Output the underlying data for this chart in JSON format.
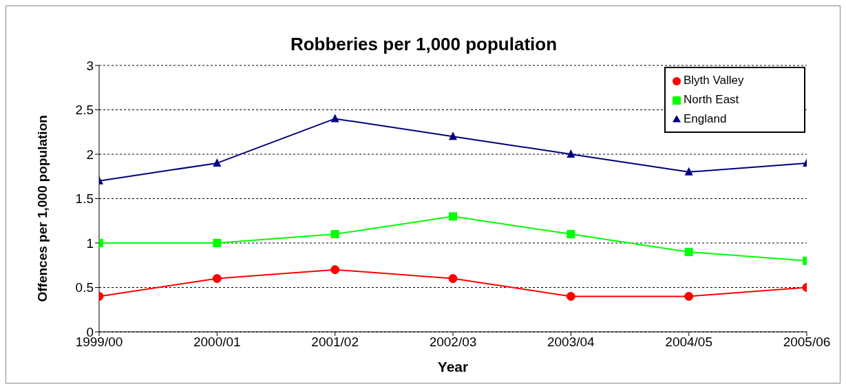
{
  "chart_data": {
    "type": "line",
    "title": "Robberies per 1,000 population",
    "xlabel": "Year",
    "ylabel": "Offences per 1,000 population",
    "categories": [
      "1999/00",
      "2000/01",
      "2001/02",
      "2002/03",
      "2003/04",
      "2004/05",
      "2005/06"
    ],
    "series": [
      {
        "name": "Blyth Valley",
        "color": "#ff0000",
        "marker": "circle",
        "values": [
          0.4,
          0.6,
          0.7,
          0.6,
          0.4,
          0.4,
          0.5
        ]
      },
      {
        "name": "North East",
        "color": "#00ff00",
        "marker": "square",
        "values": [
          1.0,
          1.0,
          1.1,
          1.3,
          1.1,
          0.9,
          0.8
        ]
      },
      {
        "name": "England",
        "color": "#000080",
        "marker": "triangle",
        "values": [
          1.7,
          1.9,
          2.4,
          2.2,
          2.0,
          1.8,
          1.9
        ]
      }
    ],
    "ylim": [
      0,
      3
    ],
    "yticks": [
      0,
      0.5,
      1,
      1.5,
      2,
      2.5,
      3
    ],
    "grid": "y",
    "legend": "top right",
    "line_style": "solid"
  }
}
